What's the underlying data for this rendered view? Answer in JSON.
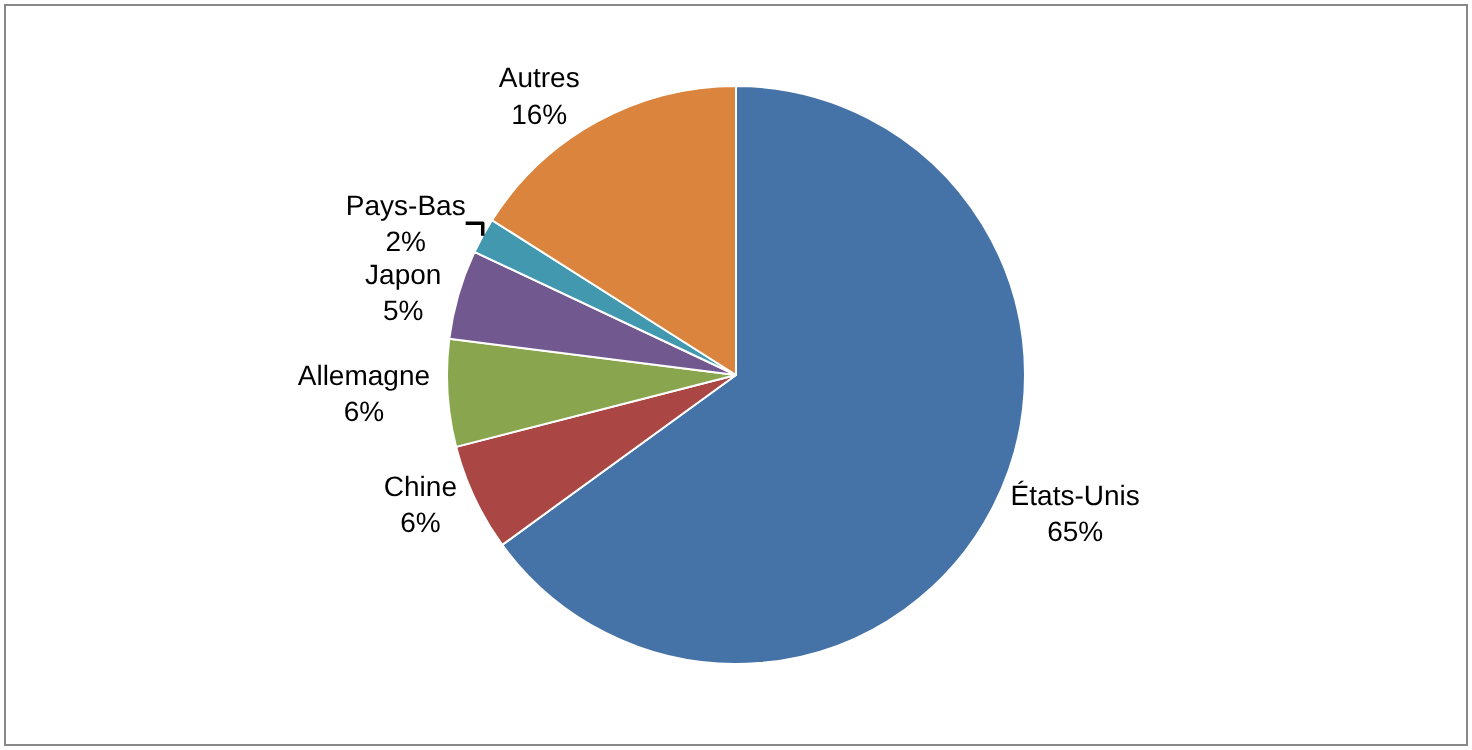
{
  "chart_data": {
    "type": "pie",
    "categories": [
      "États-Unis",
      "Chine",
      "Allemagne",
      "Japon",
      "Pays-Bas",
      "Autres"
    ],
    "values": [
      65,
      6,
      6,
      5,
      2,
      16
    ],
    "value_labels": [
      "65%",
      "6%",
      "6%",
      "5%",
      "2%",
      "16%"
    ],
    "colors": [
      "#4572a7",
      "#aa4643",
      "#89a54e",
      "#71588f",
      "#4198af",
      "#db843d"
    ],
    "legend": false
  }
}
